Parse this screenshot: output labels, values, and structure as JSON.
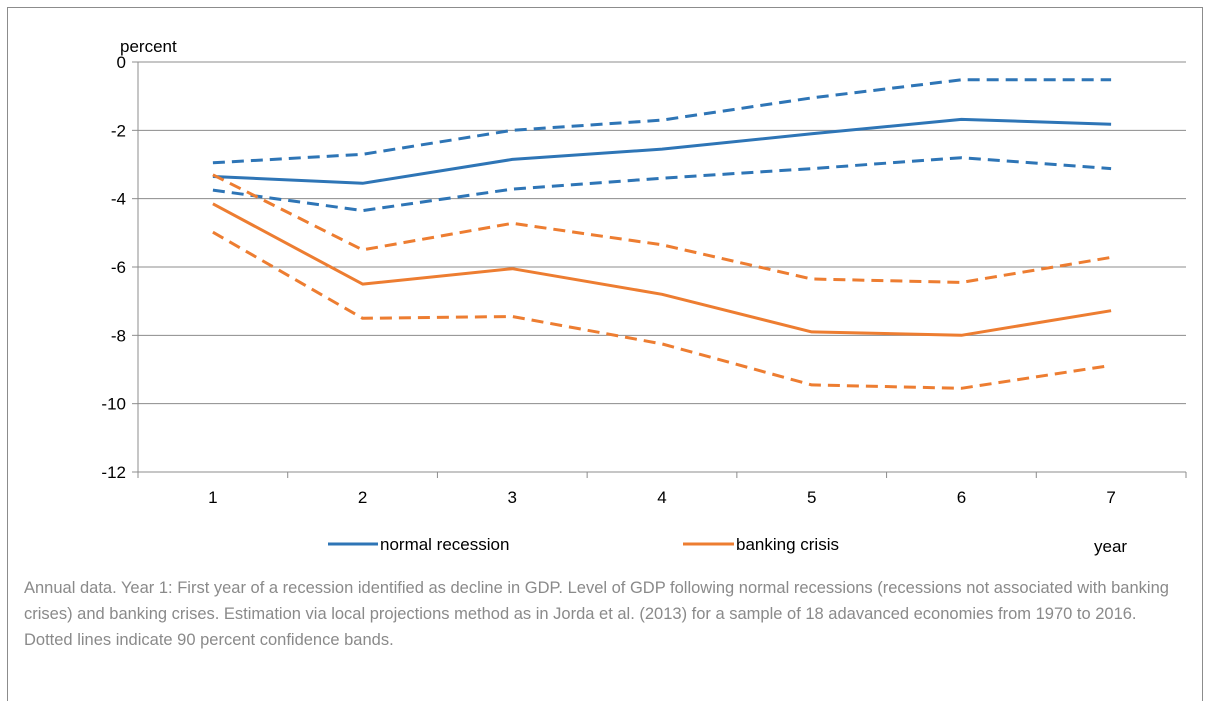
{
  "chart_data": {
    "type": "line",
    "ylabel": "percent",
    "xlabel": "year",
    "x": [
      1,
      2,
      3,
      4,
      5,
      6,
      7
    ],
    "ylim": [
      -12,
      0
    ],
    "yticks": [
      0,
      -2,
      -4,
      -6,
      -8,
      -10,
      -12
    ],
    "grid": true,
    "legend": "bottom",
    "series": [
      {
        "name": "normal recession",
        "color": "#2e75b6",
        "style": "solid",
        "in_legend": true,
        "values": [
          -3.35,
          -3.55,
          -2.85,
          -2.55,
          -2.1,
          -1.68,
          -1.82
        ]
      },
      {
        "name": "",
        "color": "#2e75b6",
        "style": "dashed",
        "in_legend": false,
        "values": [
          -2.95,
          -2.7,
          -2.0,
          -1.7,
          -1.05,
          -0.52,
          -0.52
        ]
      },
      {
        "name": "",
        "color": "#2e75b6",
        "style": "dashed",
        "in_legend": false,
        "values": [
          -3.75,
          -4.35,
          -3.72,
          -3.4,
          -3.12,
          -2.8,
          -3.12
        ]
      },
      {
        "name": "banking crisis",
        "color": "#ed7d31",
        "style": "solid",
        "in_legend": true,
        "values": [
          -4.15,
          -6.5,
          -6.05,
          -6.8,
          -7.9,
          -8.0,
          -7.28
        ]
      },
      {
        "name": "",
        "color": "#ed7d31",
        "style": "dashed",
        "in_legend": false,
        "values": [
          -3.3,
          -5.5,
          -4.72,
          -5.35,
          -6.35,
          -6.45,
          -5.72
        ]
      },
      {
        "name": "",
        "color": "#ed7d31",
        "style": "dashed",
        "in_legend": false,
        "values": [
          -4.98,
          -7.5,
          -7.45,
          -8.25,
          -9.45,
          -9.55,
          -8.88
        ]
      }
    ]
  },
  "caption": "Annual data. Year 1: First year of a recession identified as  decline in GDP.  Level of GDP following normal recessions (recessions not associated with banking crises) and banking crises. Estimation via local projections method as in Jorda et al. (2013) for a sample of 18 adavanced economies from 1970 to 2016. Dotted lines indicate 90 percent confidence bands."
}
